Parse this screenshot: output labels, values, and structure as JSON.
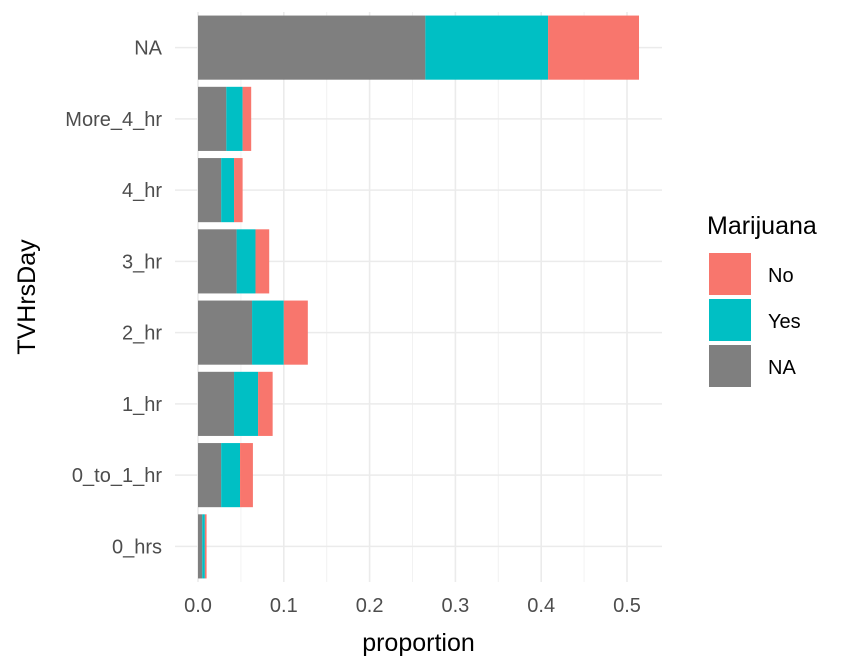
{
  "chart_data": {
    "type": "bar",
    "orientation": "horizontal",
    "stacked": true,
    "categories": [
      "0_hrs",
      "0_to_1_hr",
      "1_hr",
      "2_hr",
      "3_hr",
      "4_hr",
      "More_4_hr",
      "NA"
    ],
    "series": [
      {
        "name": "NA",
        "color": "#7F7F7F",
        "values": [
          0.005,
          0.027,
          0.042,
          0.063,
          0.045,
          0.027,
          0.033,
          0.265
        ]
      },
      {
        "name": "Yes",
        "color": "#00BFC4",
        "values": [
          0.003,
          0.022,
          0.028,
          0.037,
          0.022,
          0.015,
          0.019,
          0.143
        ]
      },
      {
        "name": "No",
        "color": "#F8766D",
        "values": [
          0.002,
          0.015,
          0.017,
          0.028,
          0.016,
          0.01,
          0.01,
          0.106
        ]
      }
    ],
    "legend_order": [
      "No",
      "Yes",
      "NA"
    ],
    "xlabel": "proportion",
    "ylabel": "TVHrsDay",
    "xlim": [
      0,
      0.54
    ],
    "xticks": [
      0.0,
      0.1,
      0.2,
      0.3,
      0.4,
      0.5
    ],
    "xtick_labels": [
      "0.0",
      "0.1",
      "0.2",
      "0.3",
      "0.4",
      "0.5"
    ],
    "grid": true,
    "legend": {
      "title": "Marijuana",
      "position": "right"
    }
  }
}
